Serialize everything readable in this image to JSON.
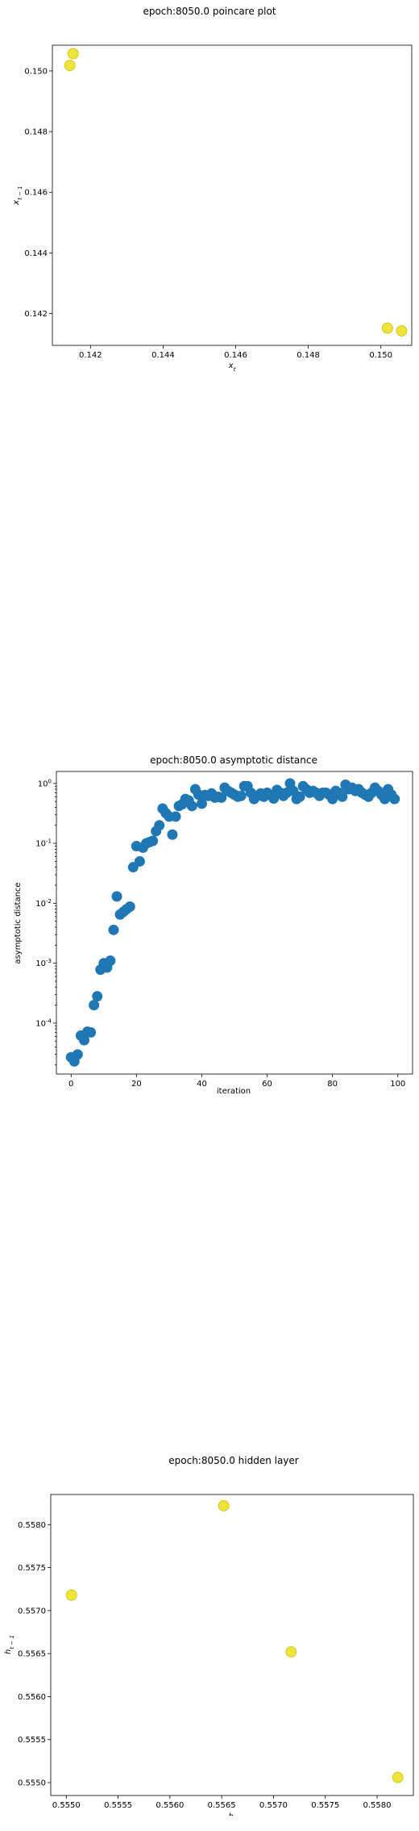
{
  "chart_data": [
    {
      "type": "scatter",
      "title": "epoch:8050.0 poincare plot",
      "xlabel": "x_t",
      "ylabel": "x_{t-1}",
      "xlim": [
        0.14095,
        0.15085
      ],
      "ylim": [
        0.14095,
        0.15085
      ],
      "xticks": [
        0.142,
        0.144,
        0.146,
        0.148,
        0.15
      ],
      "xtick_labels": [
        "0.142",
        "0.144",
        "0.146",
        "0.148",
        "0.150"
      ],
      "yticks": [
        0.142,
        0.144,
        0.146,
        0.148,
        0.15
      ],
      "ytick_labels": [
        "0.142",
        "0.144",
        "0.146",
        "0.148",
        "0.150"
      ],
      "x": [
        0.14143,
        0.14152,
        0.15018,
        0.15057
      ],
      "y": [
        0.15018,
        0.15057,
        0.14152,
        0.14143
      ],
      "marker_color": "#efe53a",
      "grid": false
    },
    {
      "type": "scatter",
      "title": "epoch:8050.0 asymptotic distance",
      "xlabel": "iteration",
      "ylabel": "asymptotic distance",
      "yscale": "log",
      "xlim": [
        -4.5,
        104.5
      ],
      "ylim_log10": [
        -4.85,
        0.2
      ],
      "xticks": [
        0,
        20,
        40,
        60,
        80,
        100
      ],
      "xtick_labels": [
        "0",
        "20",
        "40",
        "60",
        "80",
        "100"
      ],
      "yticks_log10": [
        0,
        -1,
        -2,
        -3,
        -4
      ],
      "ytick_labels": [
        "10",
        "10",
        "10",
        "10",
        "10"
      ],
      "ytick_exponents": [
        "0",
        "-1",
        "-2",
        "-3",
        "-4"
      ],
      "x": [
        0,
        1,
        2,
        3,
        4,
        5,
        6,
        7,
        8,
        9,
        10,
        11,
        12,
        13,
        14,
        15,
        16,
        17,
        18,
        19,
        20,
        21,
        22,
        23,
        24,
        25,
        26,
        27,
        28,
        29,
        30,
        31,
        32,
        33,
        34,
        35,
        36,
        37,
        38,
        39,
        40,
        41,
        42,
        43,
        44,
        45,
        46,
        47,
        48,
        49,
        50,
        51,
        52,
        53,
        54,
        55,
        56,
        57,
        58,
        59,
        60,
        61,
        62,
        63,
        64,
        65,
        66,
        67,
        68,
        69,
        70,
        71,
        72,
        73,
        74,
        75,
        76,
        77,
        78,
        79,
        80,
        81,
        82,
        83,
        84,
        85,
        86,
        87,
        88,
        89,
        90,
        91,
        92,
        93,
        94,
        95,
        96,
        97,
        98,
        99
      ],
      "y": [
        2.7e-05,
        2.3e-05,
        3e-05,
        6.2e-05,
        5.2e-05,
        7.2e-05,
        7e-05,
        0.0002,
        0.00028,
        0.00078,
        0.001,
        0.00085,
        0.0011,
        0.0036,
        0.013,
        0.0065,
        0.0072,
        0.008,
        0.0088,
        0.04,
        0.09,
        0.05,
        0.085,
        0.1,
        0.105,
        0.11,
        0.16,
        0.2,
        0.38,
        0.32,
        0.28,
        0.14,
        0.28,
        0.42,
        0.45,
        0.55,
        0.52,
        0.42,
        0.8,
        0.65,
        0.46,
        0.64,
        0.62,
        0.68,
        0.58,
        0.6,
        0.58,
        0.85,
        0.75,
        0.7,
        0.65,
        0.6,
        0.62,
        0.9,
        0.9,
        0.7,
        0.55,
        0.62,
        0.68,
        0.6,
        0.7,
        0.64,
        0.56,
        0.78,
        0.7,
        0.62,
        0.7,
        1.0,
        0.75,
        0.55,
        0.6,
        0.9,
        0.8,
        0.7,
        0.75,
        0.7,
        0.62,
        0.7,
        0.7,
        0.65,
        0.55,
        0.75,
        0.7,
        0.6,
        0.95,
        0.8,
        0.85,
        0.75,
        0.8,
        0.7,
        0.65,
        0.6,
        0.7,
        0.85,
        0.75,
        0.65,
        0.55,
        0.8,
        0.65,
        0.55
      ],
      "marker_color": "#1f77b4",
      "grid": false
    },
    {
      "type": "scatter",
      "title": "epoch:8050.0 hidden layer",
      "xlabel": "h_t",
      "ylabel": "h_{t-1}",
      "xlim": [
        0.55485,
        0.55835
      ],
      "ylim": [
        0.55485,
        0.55835
      ],
      "xticks": [
        0.555,
        0.5555,
        0.556,
        0.5565,
        0.557,
        0.5575,
        0.558
      ],
      "xtick_labels": [
        "0.5550",
        "0.5555",
        "0.5560",
        "0.5565",
        "0.5570",
        "0.5575",
        "0.5580"
      ],
      "yticks": [
        0.555,
        0.5555,
        0.556,
        0.5565,
        0.557,
        0.5575,
        0.558
      ],
      "ytick_labels": [
        "0.5550",
        "0.5555",
        "0.5560",
        "0.5565",
        "0.5570",
        "0.5575",
        "0.5580"
      ],
      "x": [
        0.55505,
        0.55652,
        0.55717,
        0.5582
      ],
      "y": [
        0.55718,
        0.55822,
        0.55652,
        0.55506
      ],
      "marker_color": "#efe53a",
      "grid": false
    }
  ]
}
